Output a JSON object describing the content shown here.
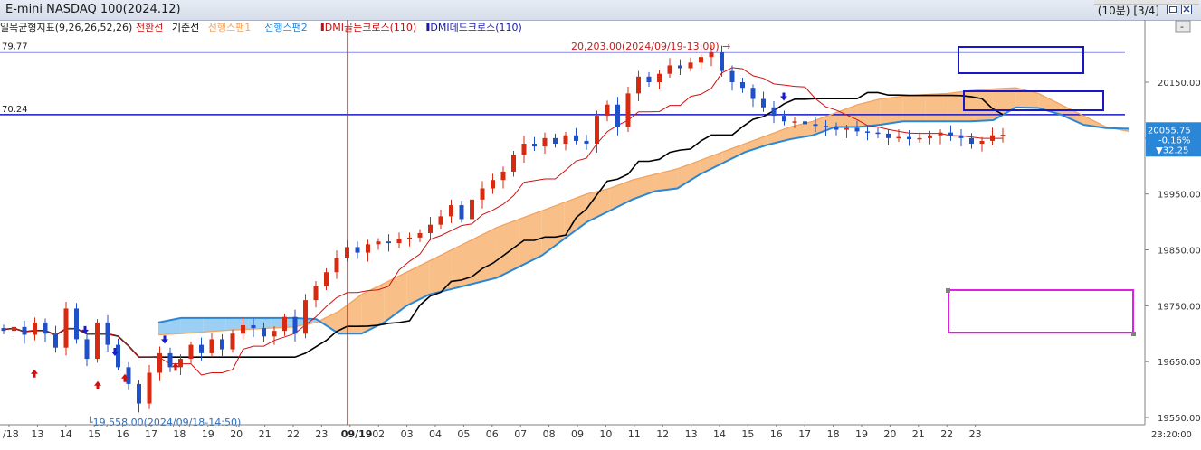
{
  "window": {
    "title": "E-mini NASDAQ 100(2024.12)",
    "interval": "(10분)",
    "page": "[3/4]",
    "icons": [
      "restore-icon",
      "close-icon"
    ],
    "side_button": "-"
  },
  "legend": {
    "indicator": "일목균형지표(9,26,26,52,26)",
    "items": [
      {
        "label": "전환선",
        "color": "#d01010"
      },
      {
        "label": "기준선",
        "color": "#000000"
      },
      {
        "label": "선행스팬1",
        "color": "#f2a460"
      },
      {
        "label": "선행스팬2",
        "color": "#2a86d6"
      },
      {
        "label": "DMI골든크로스(110)",
        "color": "#c01010"
      },
      {
        "label": "DMI데드크로스(110)",
        "color": "#1a1aa8"
      }
    ]
  },
  "horizontal_lines": [
    {
      "value": 20204,
      "label": "79.77"
    },
    {
      "value": 20092,
      "label": "70.24"
    }
  ],
  "annotations": {
    "high": "20,203.00(2024/09/19-13:00)",
    "low": "19,558.00(2024/09/18-14:50)"
  },
  "price_box": {
    "price": "20055.75",
    "change": "-0.16%",
    "delta": "▼32.25"
  },
  "colors": {
    "up": "#d62b10",
    "down": "#1f50c8",
    "span_up_cloud": "#f8c088",
    "span_down_cloud": "#9ccff4",
    "line_blue": "#1717c8",
    "magenta_box": "#e020e0"
  },
  "chart_data": {
    "type": "candlestick",
    "title": "E-mini NASDAQ 100(2024.12)",
    "y_ticks": [
      "20150.00",
      "20050.00",
      "19950.00",
      "19850.00",
      "19750.00",
      "19650.00",
      "19550.00"
    ],
    "ylim": [
      19540,
      20262
    ],
    "x_ticks": [
      "/18",
      "13",
      "14",
      "15",
      "16",
      "17",
      "18",
      "19",
      "20",
      "21",
      "22",
      "23",
      "09/19",
      "02",
      "03",
      "04",
      "05",
      "06",
      "07",
      "08",
      "09",
      "10",
      "11",
      "12",
      "13",
      "14",
      "15",
      "16",
      "17",
      "18",
      "19",
      "20",
      "21",
      "22",
      "23"
    ],
    "x_end_label": "23:20:00",
    "close_path": [
      19705,
      19712,
      19698,
      19720,
      19700,
      19675,
      19745,
      19690,
      19655,
      19720,
      19680,
      19640,
      19610,
      19575,
      19630,
      19665,
      19640,
      19655,
      19680,
      19665,
      19690,
      19672,
      19700,
      19715,
      19710,
      19695,
      19705,
      19730,
      19700,
      19760,
      19785,
      19810,
      19835,
      19855,
      19845,
      19860,
      19865,
      19862,
      19870,
      19872,
      19880,
      19895,
      19910,
      19930,
      19905,
      19940,
      19960,
      19975,
      19990,
      20020,
      20040,
      20035,
      20050,
      20040,
      20055,
      20045,
      20040,
      20090,
      20110,
      20070,
      20130,
      20160,
      20150,
      20165,
      20180,
      20175,
      20185,
      20195,
      20203,
      20170,
      20150,
      20140,
      20120,
      20105,
      20090,
      20080,
      20080,
      20075,
      20072,
      20070,
      20065,
      20068,
      20062,
      20060,
      20058,
      20050,
      20052,
      20048,
      20050,
      20055,
      20060,
      20055,
      20050,
      20040,
      20045,
      20055,
      20056
    ],
    "series": [
      {
        "name": "전환선",
        "color": "#d01010"
      },
      {
        "name": "기준선",
        "color": "#000000"
      },
      {
        "name": "선행스팬1",
        "color": "#f2a460"
      },
      {
        "name": "선행스팬2",
        "color": "#2a86d6"
      }
    ],
    "senkou1": [
      19698,
      19700,
      19703,
      19706,
      19708,
      19710,
      19712,
      19720,
      19740,
      19770,
      19790,
      19810,
      19830,
      19850,
      19870,
      19890,
      19905,
      19920,
      19935,
      19950,
      19960,
      19975,
      19985,
      19995,
      20010,
      20025,
      20040,
      20055,
      20070,
      20080,
      20095,
      20110,
      20120,
      20125,
      20128,
      20130,
      20135,
      20138,
      20140,
      20130,
      20110,
      20090,
      20070,
      20062
    ],
    "senkou2": [
      19720,
      19728,
      19728,
      19728,
      19728,
      19728,
      19728,
      19726,
      19700,
      19700,
      19720,
      19750,
      19770,
      19780,
      19790,
      19800,
      19820,
      19840,
      19870,
      19900,
      19920,
      19940,
      19955,
      19960,
      19985,
      20005,
      20025,
      20038,
      20048,
      20055,
      20070,
      20070,
      20074,
      20080,
      20080,
      20080,
      20080,
      20082,
      20105,
      20104,
      20092,
      20074,
      20068,
      20067
    ]
  }
}
